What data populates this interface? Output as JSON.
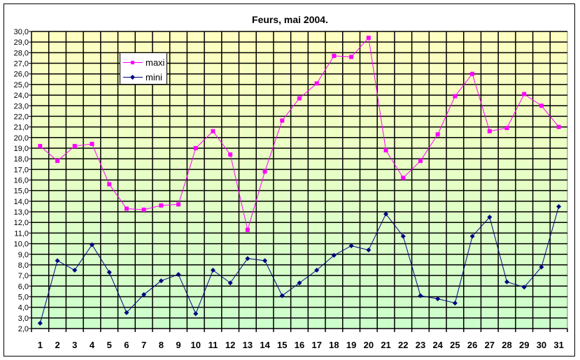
{
  "chart_data": {
    "type": "line",
    "title": "Feurs, mai 2004.",
    "xlabel": "",
    "ylabel": "",
    "categories": [
      "1",
      "2",
      "3",
      "4",
      "5",
      "6",
      "7",
      "8",
      "9",
      "10",
      "11",
      "12",
      "13",
      "14",
      "15",
      "16",
      "17",
      "18",
      "19",
      "20",
      "21",
      "22",
      "23",
      "24",
      "25",
      "26",
      "27",
      "28",
      "29",
      "30",
      "31"
    ],
    "ylim": [
      2.0,
      30.0
    ],
    "ytick_step": 1.0,
    "yticks": [
      "2,0",
      "3,0",
      "4,0",
      "5,0",
      "6,0",
      "7,0",
      "8,0",
      "9,0",
      "10,0",
      "11,0",
      "12,0",
      "13,0",
      "14,0",
      "15,0",
      "16,0",
      "17,0",
      "18,0",
      "19,0",
      "20,0",
      "21,0",
      "22,0",
      "23,0",
      "24,0",
      "25,0",
      "26,0",
      "27,0",
      "28,0",
      "29,0",
      "30,0"
    ],
    "grid": true,
    "legend": "top-left",
    "background_gradient": [
      "#FFFFC0",
      "#CCFFCC"
    ],
    "series": [
      {
        "name": "maxi",
        "color": "#FF00FF",
        "marker": "square",
        "values": [
          19.2,
          17.8,
          19.2,
          19.4,
          15.6,
          13.3,
          13.2,
          13.6,
          13.7,
          19.0,
          20.6,
          18.4,
          11.3,
          16.8,
          21.6,
          23.7,
          25.1,
          27.7,
          27.6,
          29.4,
          18.8,
          16.2,
          17.8,
          20.3,
          23.9,
          26.0,
          20.6,
          20.9,
          24.1,
          23.0,
          21.0
        ]
      },
      {
        "name": "mini",
        "color": "#000080",
        "marker": "diamond",
        "values": [
          2.5,
          8.4,
          7.5,
          9.9,
          7.3,
          3.5,
          5.2,
          6.5,
          7.1,
          3.4,
          7.5,
          6.3,
          8.6,
          8.4,
          5.1,
          6.3,
          7.5,
          8.9,
          9.8,
          9.4,
          12.8,
          10.7,
          5.1,
          4.8,
          4.4,
          10.7,
          12.5,
          6.4,
          5.9,
          7.8,
          13.5
        ]
      }
    ]
  }
}
